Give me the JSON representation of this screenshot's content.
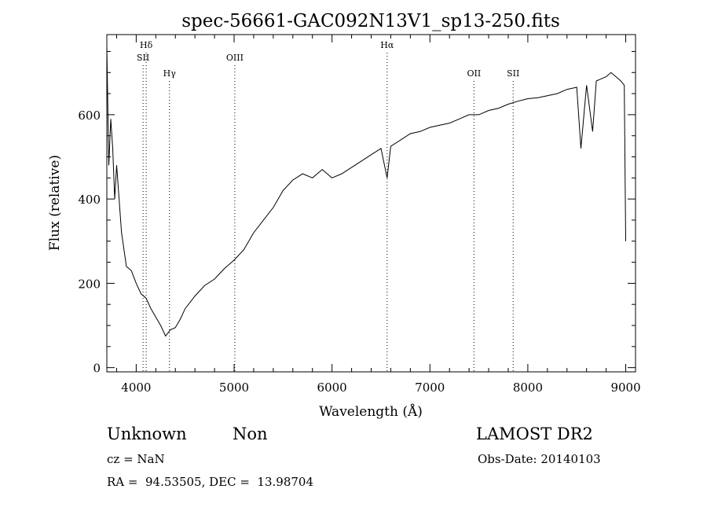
{
  "chart_data": {
    "type": "line",
    "title": "spec-56661-GAC092N13V1_sp13-250.fits",
    "xlabel": "Wavelength (Å)",
    "ylabel": "Flux (relative)",
    "xlim": [
      3700,
      9100
    ],
    "ylim": [
      -10,
      790
    ],
    "x_ticks": [
      4000,
      5000,
      6000,
      7000,
      8000,
      9000
    ],
    "y_ticks": [
      0,
      200,
      400,
      600
    ],
    "grid": false,
    "line_color": "#000000",
    "series": [
      {
        "x": [
          3700,
          3720,
          3740,
          3760,
          3780,
          3800,
          3850,
          3900,
          3950,
          4000,
          4050,
          4100,
          4150,
          4200,
          4250,
          4300,
          4350,
          4400,
          4450,
          4500,
          4600,
          4700,
          4800,
          4900,
          5000,
          5100,
          5200,
          5300,
          5400,
          5500,
          5600,
          5700,
          5800,
          5900,
          6000,
          6100,
          6200,
          6300,
          6400,
          6500,
          6563,
          6600,
          6700,
          6800,
          6900,
          7000,
          7100,
          7200,
          7300,
          7400,
          7500,
          7600,
          7700,
          7800,
          7900,
          8000,
          8100,
          8200,
          8300,
          8400,
          8500,
          8542,
          8600,
          8662,
          8700,
          8800,
          8850,
          8900,
          8950,
          8985,
          9000
        ],
        "y": [
          760,
          480,
          590,
          520,
          400,
          480,
          320,
          240,
          230,
          200,
          175,
          165,
          140,
          120,
          100,
          75,
          90,
          95,
          115,
          140,
          170,
          195,
          210,
          235,
          255,
          280,
          320,
          350,
          380,
          420,
          445,
          460,
          450,
          470,
          450,
          460,
          475,
          490,
          505,
          520,
          450,
          525,
          540,
          555,
          560,
          570,
          575,
          580,
          590,
          600,
          600,
          610,
          615,
          625,
          632,
          638,
          640,
          645,
          650,
          660,
          665,
          520,
          670,
          560,
          680,
          690,
          700,
          690,
          680,
          670,
          300
        ]
      }
    ],
    "line_markers": [
      {
        "name": "Hδ",
        "x": 4102,
        "row": 0
      },
      {
        "name": "SII",
        "x": 4070,
        "row": 1
      },
      {
        "name": "Hγ",
        "x": 4340,
        "row": 2
      },
      {
        "name": "OIII",
        "x": 5007,
        "row": 1
      },
      {
        "name": "Hα",
        "x": 6563,
        "row": 0
      },
      {
        "name": "OII",
        "x": 7450,
        "row": 2
      },
      {
        "name": "SII",
        "x": 7850,
        "row": 2
      }
    ]
  },
  "info": {
    "class": "Unknown",
    "subclass": "Non",
    "survey": "LAMOST DR2",
    "cz": "cz = NaN",
    "obs_date": "Obs-Date: 20140103",
    "coords": "RA =  94.53505, DEC =  13.98704"
  }
}
